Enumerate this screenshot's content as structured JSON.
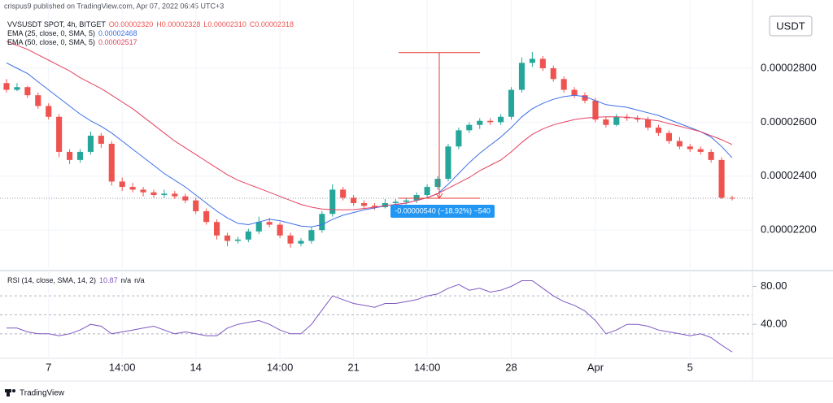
{
  "chart_data": {
    "type": "candlestick",
    "source": "crispus9 published on TradingView.com, Apr 07, 2022 06:45 UTC+3",
    "title": "VVSUSDT SPOT, 4h, BITGET",
    "ohlc_legend": [
      "O0.00002320",
      "H0.00002328",
      "L0.00002310",
      "C0.00002318"
    ],
    "currency": "USDT",
    "up_color": "#26a69a",
    "down_color": "#ef5350",
    "categories": [
      null,
      null,
      null,
      null,
      "7",
      null,
      null,
      null,
      null,
      null,
      null,
      "14:00",
      null,
      null,
      null,
      null,
      null,
      null,
      "14",
      null,
      null,
      null,
      null,
      null,
      null,
      null,
      "14:00",
      null,
      null,
      null,
      null,
      null,
      null,
      "21",
      null,
      null,
      null,
      null,
      null,
      null,
      "14:00",
      null,
      null,
      null,
      null,
      null,
      null,
      null,
      "28",
      null,
      null,
      null,
      null,
      null,
      null,
      null,
      "Apr",
      null,
      null,
      null,
      null,
      null,
      null,
      null,
      null,
      "5",
      null,
      null,
      null,
      null
    ],
    "ohlc": [
      [
        2.745e-05,
        2.76e-05,
        2.71e-05,
        2.72e-05
      ],
      [
        2.72e-05,
        2.745e-05,
        2.715e-05,
        2.73e-05
      ],
      [
        2.73e-05,
        2.735e-05,
        2.69e-05,
        2.7e-05
      ],
      [
        2.7e-05,
        2.71e-05,
        2.65e-05,
        2.66e-05
      ],
      [
        2.66e-05,
        2.67e-05,
        2.61e-05,
        2.62e-05
      ],
      [
        2.62e-05,
        2.63e-05,
        2.47e-05,
        2.49e-05
      ],
      [
        2.49e-05,
        2.5e-05,
        2.445e-05,
        2.46e-05
      ],
      [
        2.46e-05,
        2.5e-05,
        2.45e-05,
        2.49e-05
      ],
      [
        2.49e-05,
        2.565e-05,
        2.48e-05,
        2.55e-05
      ],
      [
        2.55e-05,
        2.56e-05,
        2.505e-05,
        2.52e-05
      ],
      [
        2.52e-05,
        2.53e-05,
        2.365e-05,
        2.38e-05
      ],
      [
        2.38e-05,
        2.395e-05,
        2.345e-05,
        2.36e-05
      ],
      [
        2.36e-05,
        2.375e-05,
        2.34e-05,
        2.35e-05
      ],
      [
        2.35e-05,
        2.36e-05,
        2.325e-05,
        2.34e-05
      ],
      [
        2.34e-05,
        2.35e-05,
        2.32e-05,
        2.33e-05
      ],
      [
        2.33e-05,
        2.35e-05,
        2.32e-05,
        2.335e-05
      ],
      [
        2.335e-05,
        2.345e-05,
        2.315e-05,
        2.325e-05
      ],
      [
        2.325e-05,
        2.335e-05,
        2.3e-05,
        2.31e-05
      ],
      [
        2.31e-05,
        2.32e-05,
        2.26e-05,
        2.27e-05
      ],
      [
        2.27e-05,
        2.28e-05,
        2.22e-05,
        2.23e-05
      ],
      [
        2.23e-05,
        2.24e-05,
        2.165e-05,
        2.18e-05
      ],
      [
        2.18e-05,
        2.19e-05,
        2.14e-05,
        2.16e-05
      ],
      [
        2.16e-05,
        2.175e-05,
        2.15e-05,
        2.165e-05
      ],
      [
        2.165e-05,
        2.205e-05,
        2.155e-05,
        2.195e-05
      ],
      [
        2.195e-05,
        2.25e-05,
        2.185e-05,
        2.23e-05
      ],
      [
        2.23e-05,
        2.245e-05,
        2.21e-05,
        2.22e-05
      ],
      [
        2.22e-05,
        2.23e-05,
        2.17e-05,
        2.18e-05
      ],
      [
        2.18e-05,
        2.19e-05,
        2.135e-05,
        2.15e-05
      ],
      [
        2.15e-05,
        2.17e-05,
        2.14e-05,
        2.16e-05
      ],
      [
        2.16e-05,
        2.21e-05,
        2.15e-05,
        2.2e-05
      ],
      [
        2.2e-05,
        2.27e-05,
        2.19e-05,
        2.26e-05
      ],
      [
        2.26e-05,
        2.37e-05,
        2.25e-05,
        2.35e-05
      ],
      [
        2.35e-05,
        2.36e-05,
        2.31e-05,
        2.32e-05
      ],
      [
        2.32e-05,
        2.33e-05,
        2.29e-05,
        2.3e-05
      ],
      [
        2.3e-05,
        2.31e-05,
        2.28e-05,
        2.29e-05
      ],
      [
        2.29e-05,
        2.3e-05,
        2.275e-05,
        2.285e-05
      ],
      [
        2.285e-05,
        2.315e-05,
        2.28e-05,
        2.3e-05
      ],
      [
        2.3e-05,
        2.315e-05,
        2.29e-05,
        2.305e-05
      ],
      [
        2.305e-05,
        2.32e-05,
        2.295e-05,
        2.31e-05
      ],
      [
        2.31e-05,
        2.34e-05,
        2.3e-05,
        2.33e-05
      ],
      [
        2.33e-05,
        2.37e-05,
        2.32e-05,
        2.36e-05
      ],
      [
        2.36e-05,
        2.4e-05,
        2.35e-05,
        2.39e-05
      ],
      [
        2.39e-05,
        2.52e-05,
        2.38e-05,
        2.51e-05
      ],
      [
        2.51e-05,
        2.58e-05,
        2.5e-05,
        2.57e-05
      ],
      [
        2.57e-05,
        2.6e-05,
        2.56e-05,
        2.59e-05
      ],
      [
        2.59e-05,
        2.615e-05,
        2.575e-05,
        2.605e-05
      ],
      [
        2.605e-05,
        2.615e-05,
        2.59e-05,
        2.6e-05
      ],
      [
        2.6e-05,
        2.63e-05,
        2.59e-05,
        2.62e-05
      ],
      [
        2.62e-05,
        2.73e-05,
        2.61e-05,
        2.72e-05
      ],
      [
        2.72e-05,
        2.84e-05,
        2.71e-05,
        2.82e-05
      ],
      [
        2.82e-05,
        2.86e-05,
        2.805e-05,
        2.835e-05
      ],
      [
        2.835e-05,
        2.845e-05,
        2.79e-05,
        2.8e-05
      ],
      [
        2.8e-05,
        2.81e-05,
        2.75e-05,
        2.76e-05
      ],
      [
        2.76e-05,
        2.77e-05,
        2.71e-05,
        2.72e-05
      ],
      [
        2.72e-05,
        2.73e-05,
        2.69e-05,
        2.7e-05
      ],
      [
        2.7e-05,
        2.71e-05,
        2.67e-05,
        2.68e-05
      ],
      [
        2.68e-05,
        2.69e-05,
        2.6e-05,
        2.61e-05
      ],
      [
        2.61e-05,
        2.62e-05,
        2.58e-05,
        2.59e-05
      ],
      [
        2.59e-05,
        2.63e-05,
        2.585e-05,
        2.62e-05
      ],
      [
        2.62e-05,
        2.63e-05,
        2.605e-05,
        2.615e-05
      ],
      [
        2.615e-05,
        2.625e-05,
        2.6e-05,
        2.61e-05
      ],
      [
        2.61e-05,
        2.62e-05,
        2.57e-05,
        2.58e-05
      ],
      [
        2.58e-05,
        2.59e-05,
        2.55e-05,
        2.56e-05
      ],
      [
        2.56e-05,
        2.57e-05,
        2.52e-05,
        2.53e-05
      ],
      [
        2.53e-05,
        2.545e-05,
        2.5e-05,
        2.51e-05
      ],
      [
        2.51e-05,
        2.52e-05,
        2.49e-05,
        2.5e-05
      ],
      [
        2.5e-05,
        2.51e-05,
        2.48e-05,
        2.49e-05
      ],
      [
        2.49e-05,
        2.5e-05,
        2.45e-05,
        2.46e-05
      ],
      [
        2.46e-05,
        2.47e-05,
        2.315e-05,
        2.32e-05
      ],
      [
        2.32e-05,
        2.328e-05,
        2.31e-05,
        2.318e-05
      ]
    ],
    "ylim": [
      2.059e-05,
      3.053e-05
    ],
    "yticks": [
      {
        "value": 2.2e-05,
        "label": "0.00002200"
      },
      {
        "value": 2.4e-05,
        "label": "0.00002400"
      },
      {
        "value": 2.6e-05,
        "label": "0.00002600"
      },
      {
        "value": 2.8e-05,
        "label": "0.00002800"
      }
    ],
    "grid": true,
    "series": [
      {
        "name": "EMA (25, close, 0, SMA, 5)",
        "value_label": "0.00002468",
        "color": "#3d6fe6",
        "values": [
          2.82e-05,
          2.8e-05,
          2.78e-05,
          2.75e-05,
          2.72e-05,
          2.69e-05,
          2.66e-05,
          2.63e-05,
          2.605e-05,
          2.585e-05,
          2.56e-05,
          2.53e-05,
          2.5e-05,
          2.47e-05,
          2.44e-05,
          2.41e-05,
          2.385e-05,
          2.36e-05,
          2.33e-05,
          2.3e-05,
          2.27e-05,
          2.245e-05,
          2.225e-05,
          2.22e-05,
          2.23e-05,
          2.24e-05,
          2.235e-05,
          2.225e-05,
          2.215e-05,
          2.212e-05,
          2.22e-05,
          2.24e-05,
          2.255e-05,
          2.265e-05,
          2.275e-05,
          2.282e-05,
          2.29e-05,
          2.295e-05,
          2.3e-05,
          2.31e-05,
          2.32e-05,
          2.335e-05,
          2.37e-05,
          2.41e-05,
          2.45e-05,
          2.485e-05,
          2.515e-05,
          2.545e-05,
          2.58e-05,
          2.62e-05,
          2.65e-05,
          2.67e-05,
          2.685e-05,
          2.695e-05,
          2.7e-05,
          2.695e-05,
          2.68e-05,
          2.665e-05,
          2.66e-05,
          2.655e-05,
          2.645e-05,
          2.635e-05,
          2.625e-05,
          2.61e-05,
          2.595e-05,
          2.58e-05,
          2.565e-05,
          2.545e-05,
          2.51e-05,
          2.468e-05
        ]
      },
      {
        "name": "EMA (50, close, 0, SMA, 5)",
        "value_label": "0.00002517",
        "color": "#e6415f",
        "values": [
          2.9e-05,
          2.885e-05,
          2.87e-05,
          2.85e-05,
          2.83e-05,
          2.81e-05,
          2.79e-05,
          2.765e-05,
          2.745e-05,
          2.725e-05,
          2.7e-05,
          2.675e-05,
          2.65e-05,
          2.62e-05,
          2.59e-05,
          2.56e-05,
          2.53e-05,
          2.505e-05,
          2.48e-05,
          2.455e-05,
          2.43e-05,
          2.405e-05,
          2.385e-05,
          2.37e-05,
          2.355e-05,
          2.34e-05,
          2.325e-05,
          2.31e-05,
          2.295e-05,
          2.285e-05,
          2.278e-05,
          2.276e-05,
          2.275e-05,
          2.276e-05,
          2.28e-05,
          2.285e-05,
          2.29e-05,
          2.295e-05,
          2.3e-05,
          2.31e-05,
          2.32e-05,
          2.335e-05,
          2.355e-05,
          2.375e-05,
          2.395e-05,
          2.42e-05,
          2.44e-05,
          2.46e-05,
          2.49e-05,
          2.525e-05,
          2.555e-05,
          2.575e-05,
          2.59e-05,
          2.6e-05,
          2.61e-05,
          2.615e-05,
          2.618e-05,
          2.62e-05,
          2.62e-05,
          2.618e-05,
          2.615e-05,
          2.61e-05,
          2.605e-05,
          2.595e-05,
          2.585e-05,
          2.575e-05,
          2.565e-05,
          2.55e-05,
          2.535e-05,
          2.517e-05
        ]
      }
    ],
    "measure": {
      "from": 2.858e-05,
      "to": 2.318e-05,
      "label": "-0.00000540 (−18.92%) −540",
      "color": "#e53935",
      "label_color": "#2196f3"
    },
    "rsi": {
      "name": "RSI (14, close, SMA, 14, 2)",
      "legend_values": [
        "10.87",
        "n/a",
        "n/a"
      ],
      "color": "#7e57c2",
      "ylim": [
        5,
        95
      ],
      "yticks": [
        {
          "value": 40,
          "label": "40.00"
        },
        {
          "value": 80,
          "label": "80.00"
        }
      ],
      "bands": [
        30,
        50,
        70
      ],
      "values": [
        36,
        36,
        32,
        30,
        30,
        28,
        30,
        34,
        40,
        38,
        30,
        32,
        34,
        36,
        38,
        34,
        30,
        32,
        30,
        28,
        28,
        36,
        40,
        42,
        44,
        40,
        34,
        30,
        30,
        40,
        55,
        70,
        66,
        62,
        60,
        58,
        62,
        62,
        64,
        66,
        70,
        72,
        78,
        82,
        76,
        78,
        74,
        76,
        80,
        86,
        86,
        78,
        70,
        64,
        60,
        54,
        44,
        30,
        34,
        40,
        40,
        38,
        34,
        32,
        30,
        28,
        30,
        26,
        18,
        10.87
      ]
    },
    "branding": "TradingView"
  }
}
